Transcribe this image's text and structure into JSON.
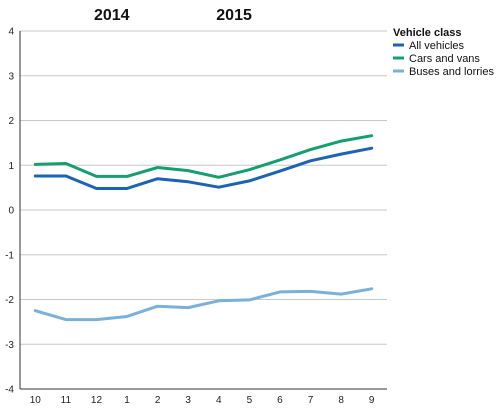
{
  "chart_data": {
    "type": "line",
    "categories": [
      "10",
      "11",
      "12",
      "1",
      "2",
      "3",
      "4",
      "5",
      "6",
      "7",
      "8",
      "9"
    ],
    "year_labels": [
      {
        "text": "2014",
        "category_index": 2.5
      },
      {
        "text": "2015",
        "category_index": 6.5
      }
    ],
    "ylim": [
      -4,
      4
    ],
    "yticks": [
      -4,
      -3,
      -2,
      -1,
      0,
      1,
      2,
      3,
      4
    ],
    "grid": true,
    "legend": {
      "title": "Vehicle class",
      "placement": "top-right"
    },
    "series": [
      {
        "name": "All vehicles",
        "color": "#1a63b8",
        "values": [
          0.76,
          0.76,
          0.48,
          0.48,
          0.7,
          0.63,
          0.51,
          0.65,
          0.87,
          1.1,
          1.25,
          1.38
        ]
      },
      {
        "name": "Cars and vans",
        "color": "#13a06d",
        "values": [
          1.02,
          1.04,
          0.75,
          0.75,
          0.95,
          0.88,
          0.73,
          0.9,
          1.12,
          1.35,
          1.54,
          1.66
        ]
      },
      {
        "name": "Buses and lorries",
        "color": "#79b0dc",
        "values": [
          -2.25,
          -2.45,
          -2.45,
          -2.38,
          -2.15,
          -2.18,
          -2.03,
          -2.01,
          -1.83,
          -1.82,
          -1.88,
          -1.76
        ]
      }
    ]
  }
}
